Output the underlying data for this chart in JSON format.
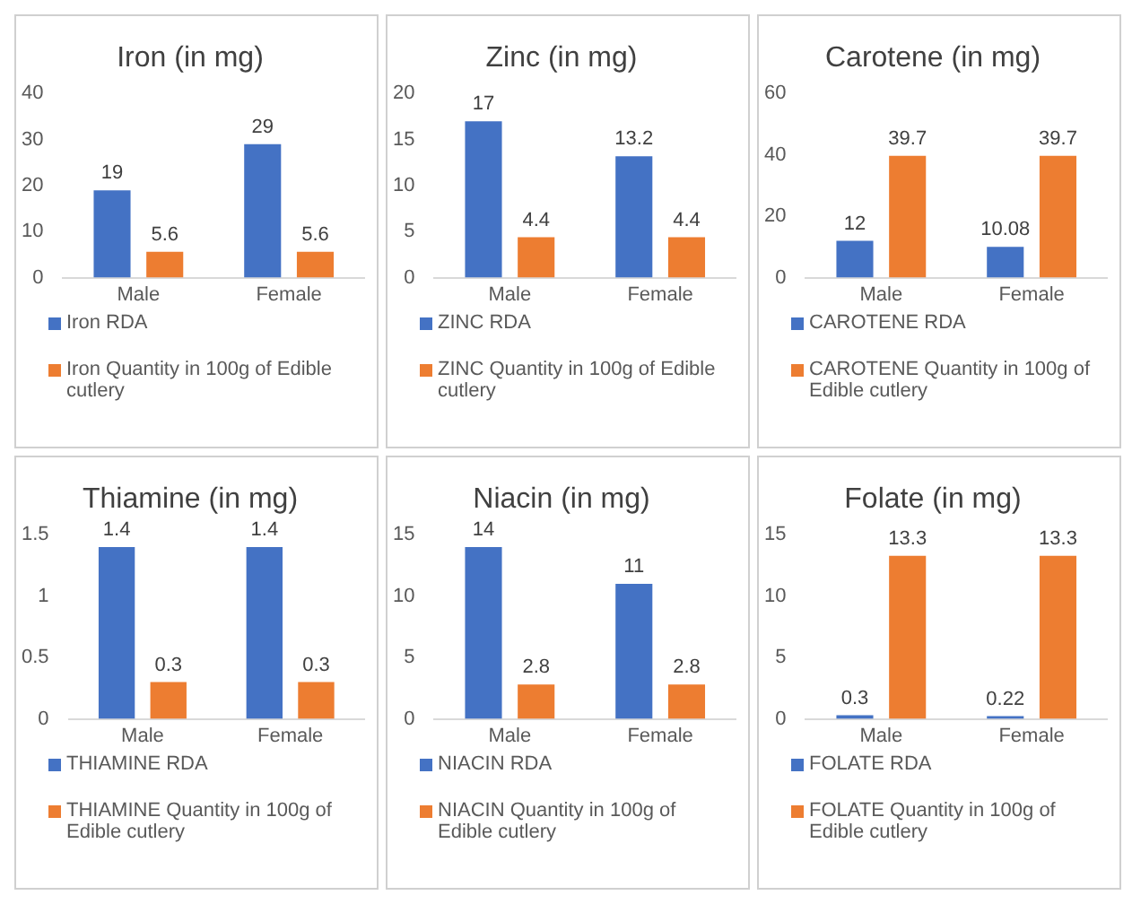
{
  "chart_data": [
    {
      "type": "bar",
      "title": "Iron (in mg)",
      "categories": [
        "Male",
        "Female"
      ],
      "series": [
        {
          "name": "Iron RDA",
          "color": "#4472c4",
          "values": [
            19,
            29
          ]
        },
        {
          "name": "Iron Quantity in 100g of Edible cutlery",
          "color": "#ed7d31",
          "values": [
            5.6,
            5.6
          ]
        }
      ],
      "ylim": [
        0,
        40
      ],
      "yticks": [
        0,
        10,
        20,
        30,
        40
      ],
      "data_labels": true,
      "legend": "bottom",
      "grid": false
    },
    {
      "type": "bar",
      "title": "Zinc (in mg)",
      "categories": [
        "Male",
        "Female"
      ],
      "series": [
        {
          "name": "ZINC RDA",
          "color": "#4472c4",
          "values": [
            17,
            13.2
          ]
        },
        {
          "name": "ZINC Quantity in 100g of Edible cutlery",
          "color": "#ed7d31",
          "values": [
            4.4,
            4.4
          ]
        }
      ],
      "ylim": [
        0,
        20
      ],
      "yticks": [
        0,
        5,
        10,
        15,
        20
      ],
      "data_labels": true,
      "legend": "bottom",
      "grid": false
    },
    {
      "type": "bar",
      "title": "Carotene (in mg)",
      "categories": [
        "Male",
        "Female"
      ],
      "series": [
        {
          "name": "CAROTENE RDA",
          "color": "#4472c4",
          "values": [
            12,
            10.08
          ]
        },
        {
          "name": "CAROTENE Quantity in 100g of Edible cutlery",
          "color": "#ed7d31",
          "values": [
            39.7,
            39.7
          ]
        }
      ],
      "ylim": [
        0,
        60
      ],
      "yticks": [
        0,
        20,
        40,
        60
      ],
      "data_labels": true,
      "legend": "bottom",
      "grid": false
    },
    {
      "type": "bar",
      "title": "Thiamine (in mg)",
      "categories": [
        "Male",
        "Female"
      ],
      "series": [
        {
          "name": "THIAMINE RDA",
          "color": "#4472c4",
          "values": [
            1.4,
            1.4
          ]
        },
        {
          "name": "THIAMINE Quantity in 100g of Edible cutlery",
          "color": "#ed7d31",
          "values": [
            0.3,
            0.3
          ]
        }
      ],
      "ylim": [
        0,
        1.5
      ],
      "yticks": [
        0,
        0.5,
        1,
        1.5
      ],
      "data_labels": true,
      "legend": "bottom",
      "grid": false
    },
    {
      "type": "bar",
      "title": "Niacin (in mg)",
      "categories": [
        "Male",
        "Female"
      ],
      "series": [
        {
          "name": "NIACIN RDA",
          "color": "#4472c4",
          "values": [
            14,
            11
          ]
        },
        {
          "name": "NIACIN Quantity in 100g of Edible cutlery",
          "color": "#ed7d31",
          "values": [
            2.8,
            2.8
          ]
        }
      ],
      "ylim": [
        0,
        15
      ],
      "yticks": [
        0,
        5,
        10,
        15
      ],
      "data_labels": true,
      "legend": "bottom",
      "grid": false
    },
    {
      "type": "bar",
      "title": "Folate (in mg)",
      "categories": [
        "Male",
        "Female"
      ],
      "series": [
        {
          "name": "FOLATE RDA",
          "color": "#4472c4",
          "values": [
            0.3,
            0.22
          ]
        },
        {
          "name": "FOLATE Quantity in 100g of Edible cutlery",
          "color": "#ed7d31",
          "values": [
            13.3,
            13.3
          ]
        }
      ],
      "ylim": [
        0,
        15
      ],
      "yticks": [
        0,
        5,
        10,
        15
      ],
      "data_labels": true,
      "legend": "bottom",
      "grid": false
    }
  ]
}
